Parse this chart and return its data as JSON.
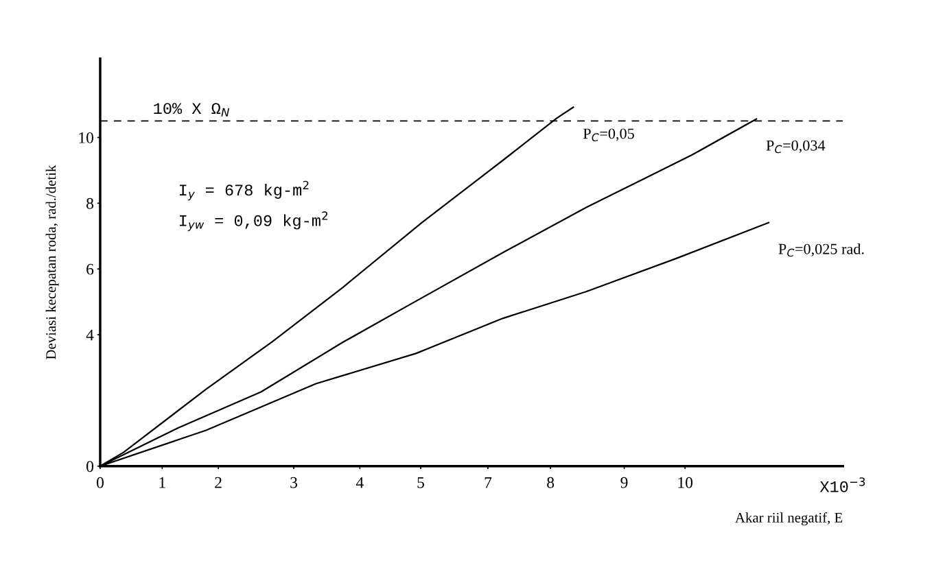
{
  "chart_data": {
    "type": "line",
    "xlabel": "Akar riil negatif, E",
    "ylabel": "Deviasi kecepatan roda, rad./detik",
    "series": [
      {
        "name": "P$_{C}$=0,05",
        "color": "#000000",
        "x": [
          0,
          0.4,
          1.81,
          2.93,
          4.15,
          5.5,
          6.89,
          7.81,
          8.09
        ],
        "values": [
          0,
          0.42,
          2.34,
          3.77,
          5.44,
          7.41,
          9.31,
          10.59,
          10.92
        ]
      },
      {
        "name": "P$_{C}$=0,034",
        "color": "#000000",
        "x": [
          0,
          1.34,
          2.75,
          4.15,
          5.4,
          6.94,
          8.31,
          10.11,
          11.22
        ],
        "values": [
          0,
          1.17,
          2.26,
          3.77,
          5.02,
          6.55,
          7.87,
          9.46,
          10.56
        ]
      },
      {
        "name": "P$_{C}$=0,025 rad.",
        "color": "#000000",
        "x": [
          0,
          1.81,
          3.69,
          5.4,
          6.89,
          8.31,
          9.85,
          11.43
        ],
        "values": [
          0,
          1.09,
          2.51,
          3.43,
          4.5,
          5.31,
          6.32,
          7.41
        ]
      }
    ],
    "xlim": [
      0,
      12.7
    ],
    "xticks": [
      0,
      {
        "value": 1.06,
        "label": "1"
      },
      {
        "value": 2.02,
        "label": "2"
      },
      {
        "value": 3.31,
        "label": "3"
      },
      {
        "value": 4.44,
        "label": "4"
      },
      {
        "value": 5.48,
        "label": "5"
      },
      {
        "value": 6.63,
        "label": "7"
      },
      {
        "value": 7.7,
        "label": "8"
      },
      {
        "value": 8.96,
        "label": "9"
      },
      10
    ],
    "ylim": [
      0,
      12.4
    ],
    "yticks": [
      0,
      4,
      6,
      8,
      10
    ],
    "ref_lines": [
      {
        "axis": "y",
        "value": 10.5,
        "label": "10% X Ω$_{N}$",
        "color": "#000000",
        "line_style": "dashed"
      }
    ],
    "annotations": [
      "I$_{y}$ = 678 kg-m$^{2}$",
      "I$_{yw}$ = 0,09 kg-m$^{2}$",
      "X10$^{−3}$"
    ],
    "grid": false,
    "legend": false,
    "marker": "none",
    "line_style": "solid"
  }
}
